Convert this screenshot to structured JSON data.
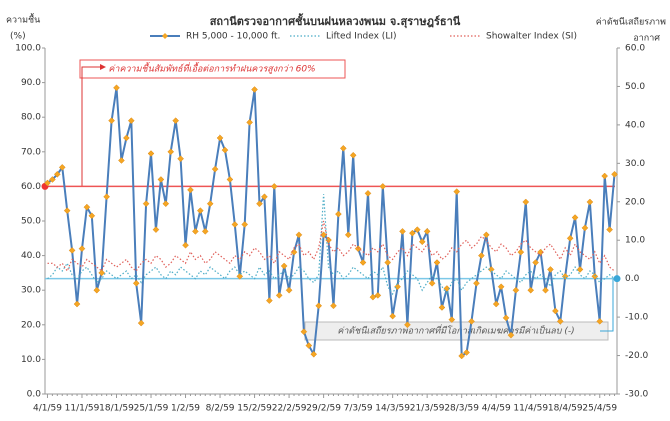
{
  "chart_data": {
    "type": "line",
    "title": "สถานีตรวจอากาศชั้นบนฝนหลวงพนม จ.สุราษฎร์ธานี",
    "y_label": [
      "ความชื้น",
      "(%)"
    ],
    "y2_label": [
      "ค่าดัชนีเสถียรภาพ",
      "อากาศ"
    ],
    "annotations": [
      "ค่าความชื้นสัมพัทธ์ที่เอื้อต่อการทำฝนควรสูงกว่า 60%",
      "ค่าดัชนีเสถียรภาพอากาศที่มีโอกาสเกิดเมฆควรมีค่าเป็นลบ (-)"
    ],
    "rh_threshold": 60,
    "index_threshold": 0,
    "categories": [
      "4/1/59",
      null,
      null,
      null,
      null,
      null,
      null,
      "11/1/59",
      null,
      null,
      null,
      null,
      null,
      null,
      "18/1/59",
      null,
      null,
      null,
      null,
      null,
      null,
      "25/1/59",
      null,
      null,
      null,
      null,
      null,
      null,
      "1/2/59",
      null,
      null,
      null,
      null,
      null,
      null,
      "8/2/59",
      null,
      null,
      null,
      null,
      null,
      null,
      "15/2/59",
      null,
      null,
      null,
      null,
      null,
      null,
      "22/2/59",
      null,
      null,
      null,
      null,
      null,
      null,
      "29/2/59",
      null,
      null,
      null,
      null,
      null,
      null,
      "7/3/59",
      null,
      null,
      null,
      null,
      null,
      null,
      "14/3/59",
      null,
      null,
      null,
      null,
      null,
      null,
      "21/3/59",
      null,
      null,
      null,
      null,
      null,
      null,
      "28/3/59",
      null,
      null,
      null,
      null,
      null,
      null,
      "4/4/59",
      null,
      null,
      null,
      null,
      null,
      null,
      "11/4/59",
      null,
      null,
      null,
      null,
      null,
      null,
      "18/4/59",
      null,
      null,
      null,
      null,
      null,
      null,
      "25/4/59",
      null,
      null,
      null
    ],
    "series": [
      {
        "name": "RH 5,000 - 10,000 ft.",
        "color": "#4a7ebb",
        "marker_color": "#f5a623",
        "style": "solid",
        "axis": "y",
        "values": [
          61,
          62,
          63.5,
          65.5,
          53,
          41.5,
          26,
          42,
          54,
          51.5,
          30,
          35,
          57,
          79,
          88.5,
          67.5,
          74,
          79,
          32,
          20.5,
          55,
          69.5,
          47.5,
          62,
          55,
          70,
          79,
          68,
          43,
          59,
          47,
          53,
          47,
          55,
          65,
          74,
          70.5,
          62,
          49,
          34,
          49,
          78.5,
          88,
          55,
          57,
          27,
          60,
          28.5,
          37,
          30,
          41,
          46,
          18,
          14,
          11.5,
          25.5,
          46,
          44.5,
          25.5,
          52,
          71,
          46,
          69,
          42,
          38,
          58,
          28,
          28.5,
          60,
          38,
          22.5,
          31,
          47,
          20,
          46.5,
          47.5,
          44,
          47,
          32,
          38,
          25,
          30.5,
          21.5,
          58.5,
          11,
          12,
          21,
          32,
          40,
          46,
          36,
          26,
          31,
          22,
          17,
          30,
          41,
          55.5,
          30,
          38,
          41,
          30,
          36,
          24,
          21,
          34,
          45,
          51,
          36,
          48,
          55.5,
          34,
          21,
          63,
          47.5,
          63.5
        ]
      },
      {
        "name": "Lifted Index (LI)",
        "color": "#4bacc6",
        "style": "dotted",
        "axis": "y2",
        "values": [
          0,
          1,
          3,
          2,
          4,
          1,
          0,
          2,
          3,
          1,
          -1,
          0,
          2,
          1,
          0,
          1,
          2,
          0,
          1,
          -1,
          1,
          2,
          3,
          1,
          0,
          2,
          1,
          3,
          2,
          1,
          0,
          2,
          1,
          3,
          2,
          1,
          0,
          2,
          3,
          1,
          2,
          1,
          0,
          3,
          1,
          2,
          0,
          1,
          2,
          0,
          1,
          3,
          2,
          0,
          -1,
          1,
          22,
          3,
          1,
          2,
          0,
          1,
          3,
          2,
          1,
          0,
          2,
          1,
          3,
          -2,
          -4,
          -1,
          0,
          2,
          1,
          0,
          -3,
          -1,
          1,
          0,
          -2,
          -4,
          -1,
          0,
          -3,
          -1,
          0,
          1,
          2,
          3,
          2,
          1,
          0,
          2,
          1,
          0,
          -1,
          1,
          2,
          0,
          1,
          0,
          -2,
          1,
          2,
          0,
          1,
          3,
          1,
          0,
          2,
          1,
          -1,
          0,
          1,
          0
        ]
      },
      {
        "name": "Showalter Index (SI)",
        "color": "#e0605a",
        "style": "dotted",
        "axis": "y2",
        "values": [
          4,
          4,
          3,
          4,
          2,
          5,
          4,
          3,
          5,
          4,
          3,
          2,
          5,
          4,
          3,
          4,
          5,
          3,
          2,
          4,
          5,
          4,
          6,
          5,
          3,
          4,
          6,
          5,
          4,
          7,
          5,
          6,
          4,
          5,
          7,
          6,
          5,
          4,
          6,
          5,
          7,
          6,
          8,
          7,
          5,
          6,
          4,
          7,
          6,
          5,
          8,
          9,
          6,
          7,
          5,
          8,
          15,
          9,
          7,
          8,
          6,
          7,
          9,
          8,
          7,
          6,
          8,
          7,
          9,
          6,
          5,
          7,
          8,
          6,
          9,
          8,
          7,
          9,
          6,
          7,
          5,
          6,
          8,
          7,
          9,
          10,
          8,
          9,
          11,
          10,
          8,
          7,
          9,
          8,
          6,
          7,
          9,
          10,
          8,
          7,
          6,
          8,
          9,
          7,
          5,
          8,
          6,
          9,
          7,
          6,
          5,
          7,
          4,
          6,
          3,
          2
        ]
      }
    ],
    "ylim": [
      0,
      100
    ],
    "yticks": [
      {
        "value": 0,
        "label": "0.0"
      },
      {
        "value": 10,
        "label": "10.0"
      },
      {
        "value": 20,
        "label": "20.0"
      },
      {
        "value": 30,
        "label": "30.0"
      },
      {
        "value": 40,
        "label": "40.0"
      },
      {
        "value": 50,
        "label": "50.0"
      },
      {
        "value": 60,
        "label": "60.0"
      },
      {
        "value": 70,
        "label": "70.0"
      },
      {
        "value": 80,
        "label": "80.0"
      },
      {
        "value": 90,
        "label": "90.0"
      },
      {
        "value": 100,
        "label": "100.0"
      }
    ],
    "y2lim": [
      -30,
      60
    ],
    "y2ticks": [
      {
        "value": -30,
        "label": "-30.0"
      },
      {
        "value": -20,
        "label": "-20.0"
      },
      {
        "value": -10,
        "label": "-10.0"
      },
      {
        "value": 0,
        "label": "0.0"
      },
      {
        "value": 10,
        "label": "10.0"
      },
      {
        "value": 20,
        "label": "20.0"
      },
      {
        "value": 30,
        "label": "30.0"
      },
      {
        "value": 40,
        "label": "40.0"
      },
      {
        "value": 50,
        "label": "50.0"
      },
      {
        "value": 60,
        "label": "60.0"
      }
    ],
    "grid": false
  }
}
